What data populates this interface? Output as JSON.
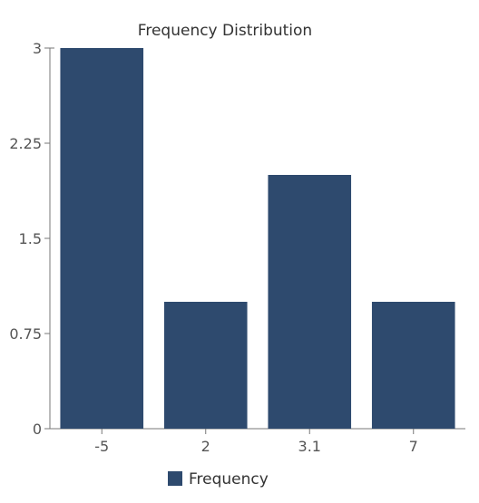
{
  "chart_data": {
    "type": "bar",
    "title": "Frequency Distribution",
    "xlabel": "",
    "ylabel": "",
    "categories": [
      "-5",
      "2",
      "3.1",
      "7"
    ],
    "series": [
      {
        "name": "Frequency",
        "values": [
          3,
          1,
          2,
          1
        ]
      }
    ],
    "ylim": [
      0,
      3
    ],
    "yticks": [
      "0",
      "0.75",
      "1.5",
      "2.25",
      "3"
    ],
    "ytick_values": [
      0,
      0.75,
      1.5,
      2.25,
      3
    ],
    "grid": false,
    "legend_position": "bottom",
    "bar_color": "#2e4a6e"
  }
}
